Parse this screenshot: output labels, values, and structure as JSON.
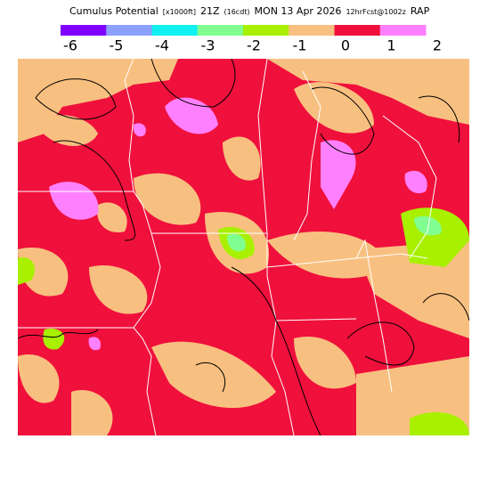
{
  "header": {
    "title_parts": [
      "Cumulus Potential",
      "[x1000ft]",
      "21Z",
      "(16cdt)",
      "MON 13 Apr 2026",
      "12hrFcst@1002z",
      "RAP"
    ]
  },
  "colorbar": {
    "colors": [
      "#8000ff",
      "#8ca0ff",
      "#10f0f0",
      "#80ff90",
      "#a8f000",
      "#f8c080",
      "#f0103c",
      "#ff80ff"
    ],
    "labels": [
      "-6",
      "-5",
      "-4",
      "-3",
      "-2",
      "-1",
      "0",
      "1",
      "2"
    ]
  }
}
